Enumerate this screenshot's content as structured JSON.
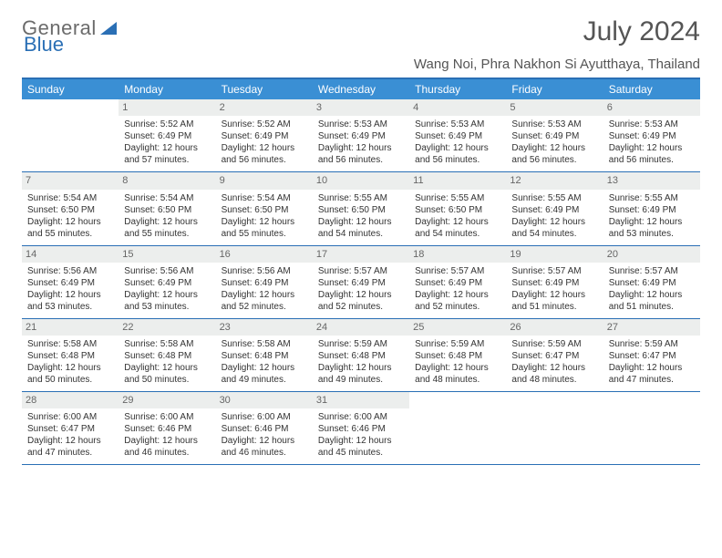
{
  "logo": {
    "text_gray": "General",
    "text_blue": "Blue"
  },
  "title": "July 2024",
  "location": "Wang Noi, Phra Nakhon Si Ayutthaya, Thailand",
  "colors": {
    "header_bar": "#3a8fd4",
    "border": "#2a6fb5",
    "daynum_bg": "#eceeed",
    "text": "#333333",
    "title_text": "#555555"
  },
  "day_headers": [
    "Sunday",
    "Monday",
    "Tuesday",
    "Wednesday",
    "Thursday",
    "Friday",
    "Saturday"
  ],
  "weeks": [
    [
      {
        "empty": true
      },
      {
        "num": "1",
        "sunrise": "Sunrise: 5:52 AM",
        "sunset": "Sunset: 6:49 PM",
        "day1": "Daylight: 12 hours",
        "day2": "and 57 minutes."
      },
      {
        "num": "2",
        "sunrise": "Sunrise: 5:52 AM",
        "sunset": "Sunset: 6:49 PM",
        "day1": "Daylight: 12 hours",
        "day2": "and 56 minutes."
      },
      {
        "num": "3",
        "sunrise": "Sunrise: 5:53 AM",
        "sunset": "Sunset: 6:49 PM",
        "day1": "Daylight: 12 hours",
        "day2": "and 56 minutes."
      },
      {
        "num": "4",
        "sunrise": "Sunrise: 5:53 AM",
        "sunset": "Sunset: 6:49 PM",
        "day1": "Daylight: 12 hours",
        "day2": "and 56 minutes."
      },
      {
        "num": "5",
        "sunrise": "Sunrise: 5:53 AM",
        "sunset": "Sunset: 6:49 PM",
        "day1": "Daylight: 12 hours",
        "day2": "and 56 minutes."
      },
      {
        "num": "6",
        "sunrise": "Sunrise: 5:53 AM",
        "sunset": "Sunset: 6:49 PM",
        "day1": "Daylight: 12 hours",
        "day2": "and 56 minutes."
      }
    ],
    [
      {
        "num": "7",
        "sunrise": "Sunrise: 5:54 AM",
        "sunset": "Sunset: 6:50 PM",
        "day1": "Daylight: 12 hours",
        "day2": "and 55 minutes."
      },
      {
        "num": "8",
        "sunrise": "Sunrise: 5:54 AM",
        "sunset": "Sunset: 6:50 PM",
        "day1": "Daylight: 12 hours",
        "day2": "and 55 minutes."
      },
      {
        "num": "9",
        "sunrise": "Sunrise: 5:54 AM",
        "sunset": "Sunset: 6:50 PM",
        "day1": "Daylight: 12 hours",
        "day2": "and 55 minutes."
      },
      {
        "num": "10",
        "sunrise": "Sunrise: 5:55 AM",
        "sunset": "Sunset: 6:50 PM",
        "day1": "Daylight: 12 hours",
        "day2": "and 54 minutes."
      },
      {
        "num": "11",
        "sunrise": "Sunrise: 5:55 AM",
        "sunset": "Sunset: 6:50 PM",
        "day1": "Daylight: 12 hours",
        "day2": "and 54 minutes."
      },
      {
        "num": "12",
        "sunrise": "Sunrise: 5:55 AM",
        "sunset": "Sunset: 6:49 PM",
        "day1": "Daylight: 12 hours",
        "day2": "and 54 minutes."
      },
      {
        "num": "13",
        "sunrise": "Sunrise: 5:55 AM",
        "sunset": "Sunset: 6:49 PM",
        "day1": "Daylight: 12 hours",
        "day2": "and 53 minutes."
      }
    ],
    [
      {
        "num": "14",
        "sunrise": "Sunrise: 5:56 AM",
        "sunset": "Sunset: 6:49 PM",
        "day1": "Daylight: 12 hours",
        "day2": "and 53 minutes."
      },
      {
        "num": "15",
        "sunrise": "Sunrise: 5:56 AM",
        "sunset": "Sunset: 6:49 PM",
        "day1": "Daylight: 12 hours",
        "day2": "and 53 minutes."
      },
      {
        "num": "16",
        "sunrise": "Sunrise: 5:56 AM",
        "sunset": "Sunset: 6:49 PM",
        "day1": "Daylight: 12 hours",
        "day2": "and 52 minutes."
      },
      {
        "num": "17",
        "sunrise": "Sunrise: 5:57 AM",
        "sunset": "Sunset: 6:49 PM",
        "day1": "Daylight: 12 hours",
        "day2": "and 52 minutes."
      },
      {
        "num": "18",
        "sunrise": "Sunrise: 5:57 AM",
        "sunset": "Sunset: 6:49 PM",
        "day1": "Daylight: 12 hours",
        "day2": "and 52 minutes."
      },
      {
        "num": "19",
        "sunrise": "Sunrise: 5:57 AM",
        "sunset": "Sunset: 6:49 PM",
        "day1": "Daylight: 12 hours",
        "day2": "and 51 minutes."
      },
      {
        "num": "20",
        "sunrise": "Sunrise: 5:57 AM",
        "sunset": "Sunset: 6:49 PM",
        "day1": "Daylight: 12 hours",
        "day2": "and 51 minutes."
      }
    ],
    [
      {
        "num": "21",
        "sunrise": "Sunrise: 5:58 AM",
        "sunset": "Sunset: 6:48 PM",
        "day1": "Daylight: 12 hours",
        "day2": "and 50 minutes."
      },
      {
        "num": "22",
        "sunrise": "Sunrise: 5:58 AM",
        "sunset": "Sunset: 6:48 PM",
        "day1": "Daylight: 12 hours",
        "day2": "and 50 minutes."
      },
      {
        "num": "23",
        "sunrise": "Sunrise: 5:58 AM",
        "sunset": "Sunset: 6:48 PM",
        "day1": "Daylight: 12 hours",
        "day2": "and 49 minutes."
      },
      {
        "num": "24",
        "sunrise": "Sunrise: 5:59 AM",
        "sunset": "Sunset: 6:48 PM",
        "day1": "Daylight: 12 hours",
        "day2": "and 49 minutes."
      },
      {
        "num": "25",
        "sunrise": "Sunrise: 5:59 AM",
        "sunset": "Sunset: 6:48 PM",
        "day1": "Daylight: 12 hours",
        "day2": "and 48 minutes."
      },
      {
        "num": "26",
        "sunrise": "Sunrise: 5:59 AM",
        "sunset": "Sunset: 6:47 PM",
        "day1": "Daylight: 12 hours",
        "day2": "and 48 minutes."
      },
      {
        "num": "27",
        "sunrise": "Sunrise: 5:59 AM",
        "sunset": "Sunset: 6:47 PM",
        "day1": "Daylight: 12 hours",
        "day2": "and 47 minutes."
      }
    ],
    [
      {
        "num": "28",
        "sunrise": "Sunrise: 6:00 AM",
        "sunset": "Sunset: 6:47 PM",
        "day1": "Daylight: 12 hours",
        "day2": "and 47 minutes."
      },
      {
        "num": "29",
        "sunrise": "Sunrise: 6:00 AM",
        "sunset": "Sunset: 6:46 PM",
        "day1": "Daylight: 12 hours",
        "day2": "and 46 minutes."
      },
      {
        "num": "30",
        "sunrise": "Sunrise: 6:00 AM",
        "sunset": "Sunset: 6:46 PM",
        "day1": "Daylight: 12 hours",
        "day2": "and 46 minutes."
      },
      {
        "num": "31",
        "sunrise": "Sunrise: 6:00 AM",
        "sunset": "Sunset: 6:46 PM",
        "day1": "Daylight: 12 hours",
        "day2": "and 45 minutes."
      },
      {
        "empty": true
      },
      {
        "empty": true
      },
      {
        "empty": true
      }
    ]
  ]
}
